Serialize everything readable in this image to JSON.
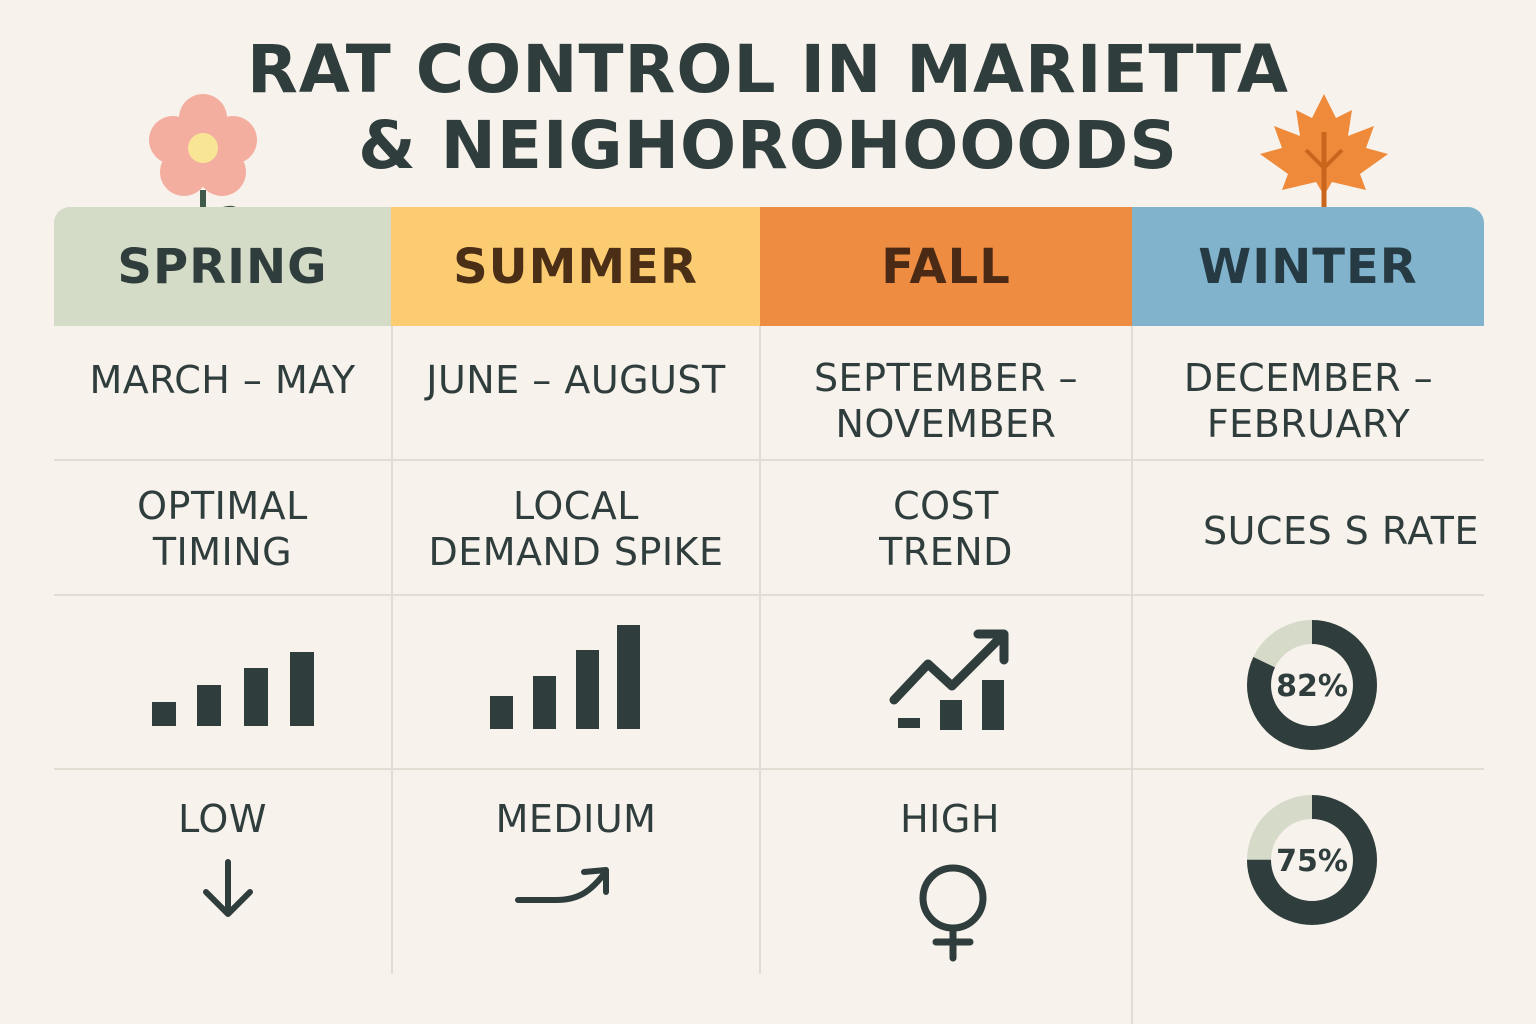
{
  "title": {
    "line1": "RAT CONTROL IN MARIETTA",
    "line2": "& NEIGHOROHOOODS"
  },
  "colors": {
    "background": "#f7f2ec",
    "text": "#2f3d3c",
    "spring": "#d4dbc6",
    "summer": "#fccc72",
    "fall": "#ee8c42",
    "winter": "#82b3cd",
    "donut_track": "#d6dac8",
    "donut_fill": "#2f3d3c"
  },
  "seasons": [
    {
      "name": "SPRING",
      "months_line1": "MARCH – MAY",
      "months_line2": ""
    },
    {
      "name": "SUMMER",
      "months_line1": "JUNE – AUGUST",
      "months_line2": ""
    },
    {
      "name": "FALL",
      "months_line1": "SEPTEMBER –",
      "months_line2": "NOVEMBER"
    },
    {
      "name": "WINTER",
      "months_line1": "DECEMBER –",
      "months_line2": "FEBRUARY"
    }
  ],
  "metrics": [
    {
      "line1": "OPTIMAL",
      "line2": "TIMING"
    },
    {
      "line1": "LOCAL",
      "line2": "DEMAND SPIKE"
    },
    {
      "line1": "COST",
      "line2": "TREND"
    },
    {
      "line1": "SUCES S RATE",
      "line2": ""
    }
  ],
  "levels": [
    {
      "label": "LOW",
      "icon": "arrow-down-icon"
    },
    {
      "label": "MEDIUM",
      "icon": "curved-arrow-up-icon"
    },
    {
      "label": "HIGH",
      "icon": "female-symbol-icon"
    }
  ],
  "icons": {
    "spring": "flower-icon",
    "winter": "maple-leaf-icon",
    "timing": "bar-chart-icon",
    "demand": "bar-chart-icon",
    "cost": "trend-chart-icon"
  },
  "success_rates": [
    {
      "label": "82%",
      "value": 0.82
    },
    {
      "label": "75%",
      "value": 0.75
    }
  ]
}
